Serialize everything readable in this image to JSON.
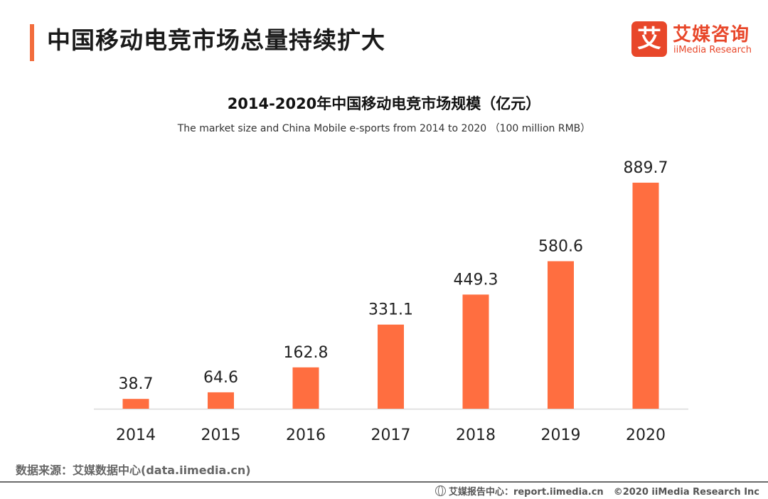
{
  "header": {
    "title": "中国移动电竞市场总量持续扩大"
  },
  "logo": {
    "mark": "艾",
    "cn": "艾媒咨询",
    "en": "iiMedia Research"
  },
  "chart_data": {
    "type": "bar",
    "title": "2014-2020年中国移动电竞市场规模（亿元）",
    "subtitle": "The market size and China Mobile e-sports from 2014 to 2020 （100 million RMB）",
    "categories": [
      "2014",
      "2015",
      "2016",
      "2017",
      "2018",
      "2019",
      "2020"
    ],
    "values": [
      38.7,
      64.6,
      162.8,
      331.1,
      449.3,
      580.6,
      889.7
    ],
    "value_labels": [
      "38.7",
      "64.6",
      "162.8",
      "331.1",
      "449.3",
      "580.6",
      "889.7"
    ],
    "xlabel": "",
    "ylabel": "",
    "ylim": [
      0,
      889.7
    ],
    "grid": false,
    "legend": "none",
    "colors": {
      "bar": "#ff6e40",
      "axis": "#d9d9d9"
    }
  },
  "footer": {
    "source": "数据来源：艾媒数据中心(data.iimedia.cn)",
    "report": "艾媒报告中心：report.iimedia.cn",
    "copyright": "©2020  iiMedia Research  Inc",
    "icon": "globe-icon"
  }
}
